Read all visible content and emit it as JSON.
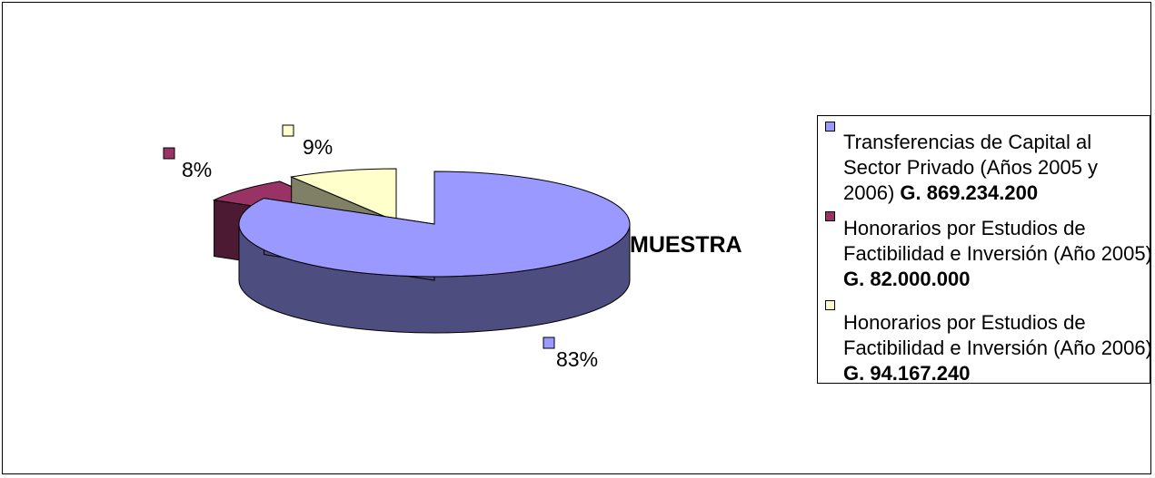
{
  "chart_data": {
    "type": "pie",
    "title": "MUESTRA",
    "three_d": true,
    "exploded": true,
    "legend_position": "right",
    "categories": [
      "Transferencias de Capital al Sector Privado (Años 2005 y 2006)",
      "Honorarios por Estudios de Factibilidad e Inversión (Año 2005)",
      "Honorarios por Estudios de Factibilidad e Inversión (Año 2006)"
    ],
    "amounts": [
      "G. 869.234.200",
      "G. 82.000.000",
      "G. 94.167.240"
    ],
    "values": [
      869234200,
      82000000,
      94167240
    ],
    "data_labels": [
      "83%",
      "8%",
      "9%"
    ],
    "colors": [
      "#9999ff",
      "#993366",
      "#ffffcc"
    ],
    "side_colors": [
      "#4d4d80",
      "#4d1a33",
      "#808066"
    ]
  }
}
